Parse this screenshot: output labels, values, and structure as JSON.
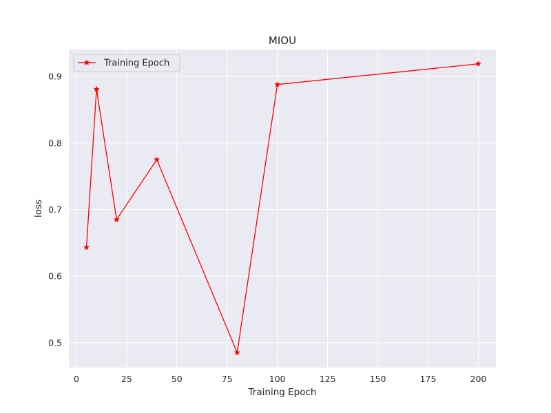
{
  "chart_data": {
    "type": "line",
    "title": "MIOU",
    "xlabel": "Training Epoch",
    "ylabel": "loss",
    "xlim": [
      -3.75,
      208.75
    ],
    "ylim": [
      0.4625,
      0.9405
    ],
    "xticks": [
      0,
      25,
      50,
      75,
      100,
      125,
      150,
      175,
      200
    ],
    "yticks": [
      0.5,
      0.6,
      0.7,
      0.8,
      0.9
    ],
    "grid": true,
    "legend_position": "top-left",
    "colors": {
      "background": "#eaeaf2",
      "grid": "#ffffff",
      "series": "#ff0000"
    },
    "series": [
      {
        "name": "Training Epoch",
        "marker": "star",
        "x": [
          5,
          10,
          20,
          40,
          80,
          100,
          200
        ],
        "y": [
          0.643,
          0.881,
          0.685,
          0.775,
          0.485,
          0.888,
          0.919
        ]
      }
    ]
  }
}
